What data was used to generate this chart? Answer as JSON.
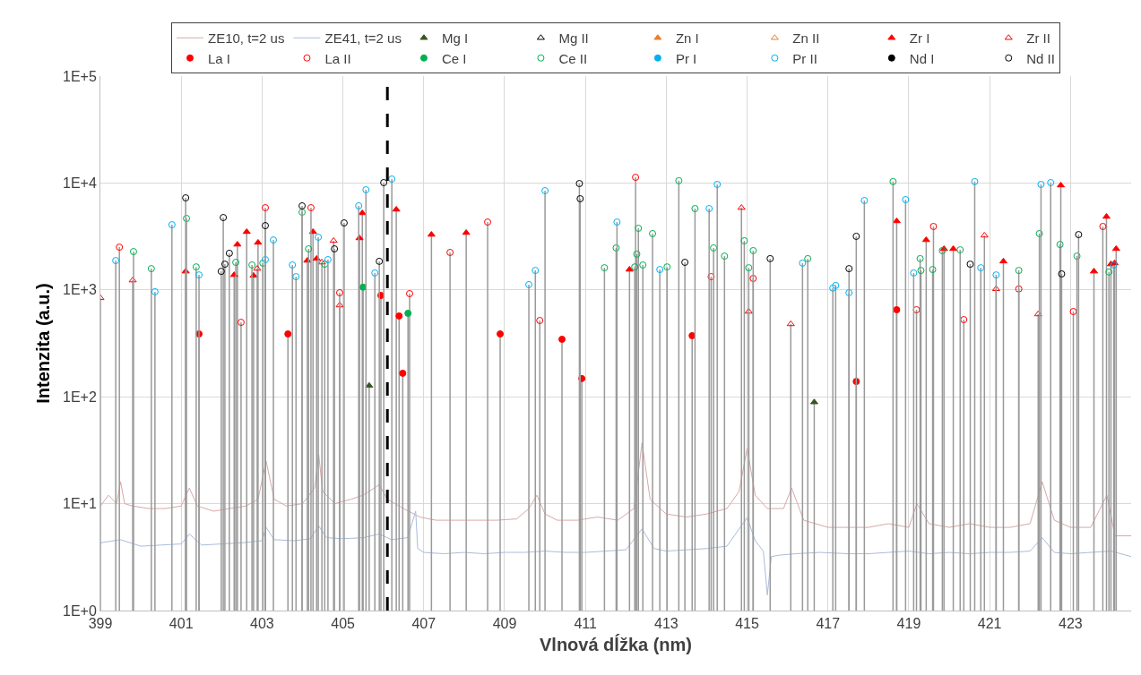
{
  "chart_data": {
    "type": "lollipop",
    "xlabel": "Vlnová dĺžka (nm)",
    "ylabel": "Intenzita (a.u.)",
    "xlim": [
      399,
      424.5
    ],
    "xticks": [
      399,
      401,
      403,
      405,
      407,
      409,
      411,
      413,
      415,
      417,
      419,
      421,
      423
    ],
    "ylim": [
      1,
      100000
    ],
    "yticks": [
      {
        "value": 1,
        "label": "1E+0"
      },
      {
        "value": 10,
        "label": "1E+1"
      },
      {
        "value": 100,
        "label": "1E+2"
      },
      {
        "value": 1000,
        "label": "1E+3"
      },
      {
        "value": 10000,
        "label": "1E+4"
      },
      {
        "value": 100000,
        "label": "1E+5"
      }
    ],
    "log": true,
    "grid": true,
    "legend": "top",
    "ref_lines": [
      {
        "axis": "x",
        "value": 406.1,
        "color": "#000000",
        "line_style": "dashed"
      }
    ],
    "series": [
      {
        "name": "ZE10, t=2 us",
        "type": "line",
        "color": "#d8a8a8",
        "marker": "none",
        "x": [
          399,
          399.2,
          399.4,
          399.5,
          399.6,
          399.8,
          400.2,
          400.6,
          401,
          401.2,
          401.4,
          401.8,
          402.2,
          402.6,
          402.9,
          403.1,
          403.3,
          403.6,
          404,
          404.3,
          404.4,
          404.5,
          404.8,
          405.2,
          405.5,
          405.9,
          406.1,
          406.5,
          406.9,
          407.3,
          407.8,
          408.3,
          408.8,
          409.3,
          409.6,
          409.8,
          410.0,
          410.3,
          410.8,
          411.3,
          411.8,
          412.2,
          412.4,
          412.6,
          413,
          413.5,
          414,
          414.5,
          414.8,
          415,
          415.2,
          415.5,
          415.9,
          416.1,
          416.4,
          417,
          417.5,
          418,
          418.5,
          419,
          419.2,
          419.5,
          420,
          420.5,
          421,
          421.5,
          422,
          422.3,
          422.6,
          423,
          423.5,
          423.9,
          424.1,
          424.5
        ],
        "values": [
          9.5,
          12,
          10,
          16,
          10,
          9.5,
          9,
          9,
          9.5,
          14,
          9.5,
          8.5,
          9,
          9.5,
          11,
          25,
          11,
          9.5,
          10,
          14,
          29,
          13,
          10,
          11,
          12,
          15,
          11,
          9,
          7.5,
          7,
          7,
          7,
          7,
          7.2,
          9,
          12,
          8,
          7,
          7,
          7.5,
          7,
          9,
          37,
          11,
          8,
          7.5,
          8,
          9,
          13,
          33,
          12,
          9,
          9,
          14,
          7,
          6,
          6,
          6,
          6.5,
          6,
          10,
          6.5,
          6,
          6.5,
          6,
          6,
          6.5,
          16,
          7,
          6,
          6,
          12,
          5,
          5
        ]
      },
      {
        "name": "ZE41, t=2 us",
        "type": "line",
        "color": "#a9bcdb",
        "marker": "none",
        "x": [
          399,
          399.5,
          400,
          400.5,
          401,
          401.2,
          401.5,
          402,
          402.5,
          403,
          403.1,
          403.3,
          403.8,
          404.2,
          404.4,
          404.6,
          405,
          405.5,
          405.9,
          406.2,
          406.6,
          406.8,
          406.85,
          407,
          407.5,
          408,
          408.5,
          409,
          409.5,
          410,
          410.5,
          411,
          411.5,
          412,
          412.4,
          412.7,
          413,
          413.5,
          414,
          414.5,
          415,
          415.2,
          415.4,
          415.5,
          415.6,
          415.8,
          416.2,
          416.8,
          417.5,
          418,
          418.5,
          419,
          419.5,
          420,
          420.5,
          421,
          421.5,
          422,
          422.3,
          422.6,
          423,
          423.5,
          424,
          424.5
        ],
        "values": [
          4.3,
          4.6,
          4.0,
          4.1,
          4.2,
          5.2,
          4.1,
          4.2,
          4.3,
          4.5,
          6,
          4.6,
          4.5,
          4.7,
          6.2,
          4.8,
          4.7,
          4.8,
          5.2,
          4.6,
          4.8,
          8.5,
          3.8,
          3.5,
          3.4,
          3.5,
          3.4,
          3.5,
          3.5,
          3.6,
          3.5,
          3.5,
          3.6,
          3.7,
          5.8,
          3.8,
          3.6,
          3.7,
          3.8,
          4.0,
          7.4,
          4.5,
          3.6,
          1.4,
          3.2,
          3.3,
          3.4,
          3.5,
          3.4,
          3.4,
          3.5,
          3.6,
          3.4,
          3.5,
          3.4,
          3.5,
          3.5,
          3.6,
          4.8,
          3.5,
          3.4,
          3.5,
          3.6,
          3.2
        ]
      },
      {
        "name": "Mg I",
        "color": "#375623",
        "marker": "triangle",
        "x": [
          405.65,
          416.66
        ],
        "values": [
          127,
          89
        ]
      },
      {
        "name": "Mg II",
        "color": "#000000",
        "marker": "triangle-open"
      },
      {
        "name": "Zn I",
        "color": "#ed7d31",
        "marker": "triangle"
      },
      {
        "name": "Zn II",
        "color": "#ed7d31",
        "marker": "triangle-open"
      },
      {
        "name": "Zr I",
        "color": "#ff0000",
        "marker": "triangle",
        "x": [
          401.11,
          402.31,
          402.39,
          402.62,
          402.79,
          402.9,
          404.12,
          404.26,
          404.35,
          405.41,
          405.48,
          406.32,
          407.19,
          408.05,
          412.09,
          418.7,
          419.43,
          419.87,
          420.1,
          421.34,
          422.76,
          423.58,
          423.89,
          424.0,
          424.09,
          424.13
        ],
        "values": [
          1490,
          1380,
          2660,
          3490,
          1360,
          2770,
          1880,
          3490,
          1960,
          3050,
          5230,
          5650,
          3290,
          3420,
          1550,
          4400,
          2930,
          2420,
          2420,
          1850,
          9510,
          1490,
          4840,
          1740,
          1780,
          2420
        ]
      },
      {
        "name": "Zr II",
        "color": "#ff0000",
        "marker": "triangle-open",
        "x": [
          399.0,
          399.8,
          402.88,
          404.48,
          404.77,
          404.92,
          414.86,
          415.04,
          416.08,
          420.87,
          421.16,
          422.2
        ],
        "values": [
          840,
          1230,
          1580,
          1810,
          2880,
          718,
          5870,
          627,
          479,
          3230,
          1020,
          592
        ]
      },
      {
        "name": "La I",
        "color": "#ff0000",
        "marker": "circle",
        "x": [
          401.44,
          403.64,
          405.94,
          406.39,
          406.48,
          408.89,
          410.42,
          410.91,
          413.64,
          417.7,
          418.7
        ],
        "values": [
          387,
          387,
          887,
          570,
          166,
          387,
          345,
          148,
          373,
          139,
          652
        ]
      },
      {
        "name": "La II",
        "color": "#ff0000",
        "marker": "circle-open",
        "x": [
          399.47,
          402.48,
          403.08,
          404.21,
          404.92,
          406.65,
          407.65,
          408.58,
          409.87,
          412.24,
          414.11,
          415.15,
          419.19,
          419.61,
          420.36,
          421.72,
          423.07,
          423.8
        ],
        "values": [
          2510,
          497,
          5870,
          5870,
          940,
          922,
          2240,
          4310,
          517,
          11300,
          1330,
          1280,
          652,
          3920,
          527,
          1020,
          627,
          3920
        ]
      },
      {
        "name": "Ce I",
        "color": "#00b050",
        "marker": "circle",
        "x": [
          405.5,
          406.61
        ],
        "values": [
          1060,
          604
        ]
      },
      {
        "name": "Ce II",
        "color": "#00b050",
        "marker": "circle-open",
        "x": [
          399.82,
          400.26,
          401.13,
          401.37,
          402.35,
          402.75,
          403.02,
          403.99,
          404.15,
          404.55,
          411.47,
          411.76,
          412.22,
          412.27,
          412.31,
          412.42,
          412.66,
          413.02,
          413.31,
          413.71,
          414.17,
          414.44,
          414.93,
          415.04,
          415.15,
          416.5,
          418.61,
          419.28,
          419.3,
          419.59,
          419.83,
          420.27,
          421.72,
          422.23,
          422.74,
          423.16,
          423.95
        ],
        "values": [
          2280,
          1580,
          4660,
          1640,
          1810,
          1710,
          1780,
          5330,
          2420,
          1740,
          1610,
          2470,
          1640,
          2160,
          3770,
          1710,
          3360,
          1640,
          10500,
          5760,
          2470,
          2070,
          2880,
          1610,
          2330,
          1960,
          10300,
          1960,
          1520,
          1550,
          2330,
          2370,
          1520,
          3360,
          2660,
          2070,
          1470
        ]
      },
      {
        "name": "Pr I",
        "color": "#00b0f0",
        "marker": "circle"
      },
      {
        "name": "Pr II",
        "color": "#00b0f0",
        "marker": "circle-open",
        "x": [
          399.38,
          400.35,
          400.77,
          401.44,
          403.08,
          403.28,
          403.75,
          403.84,
          404.39,
          404.63,
          405.39,
          405.57,
          405.79,
          406.21,
          409.6,
          409.76,
          410.0,
          411.78,
          412.84,
          414.06,
          414.26,
          416.37,
          417.12,
          417.19,
          417.52,
          417.9,
          418.92,
          419.12,
          420.63,
          420.78,
          421.16,
          422.27,
          422.51,
          424.07
        ],
        "values": [
          1880,
          960,
          4070,
          1380,
          1920,
          2930,
          1710,
          1330,
          3110,
          1920,
          6110,
          8640,
          1440,
          10890,
          1120,
          1520,
          8470,
          4310,
          1550,
          5760,
          9700,
          1780,
          1040,
          1100,
          940,
          6850,
          6990,
          1440,
          10300,
          1610,
          1380,
          9700,
          10080,
          1710
        ]
      },
      {
        "name": "Nd I",
        "color": "#000000",
        "marker": "circle"
      },
      {
        "name": "Nd II",
        "color": "#000000",
        "marker": "circle-open",
        "x": [
          401.11,
          401.99,
          402.04,
          402.08,
          402.19,
          403.08,
          403.99,
          404.79,
          405.03,
          405.9,
          406.01,
          410.85,
          410.87,
          413.46,
          415.57,
          417.52,
          417.7,
          420.52,
          422.78,
          423.2
        ],
        "values": [
          7260,
          1490,
          4750,
          1740,
          2200,
          3990,
          6110,
          2420,
          4230,
          1850,
          10080,
          9880,
          7120,
          1810,
          1960,
          1580,
          3170,
          1740,
          1410,
          3290
        ]
      }
    ]
  }
}
